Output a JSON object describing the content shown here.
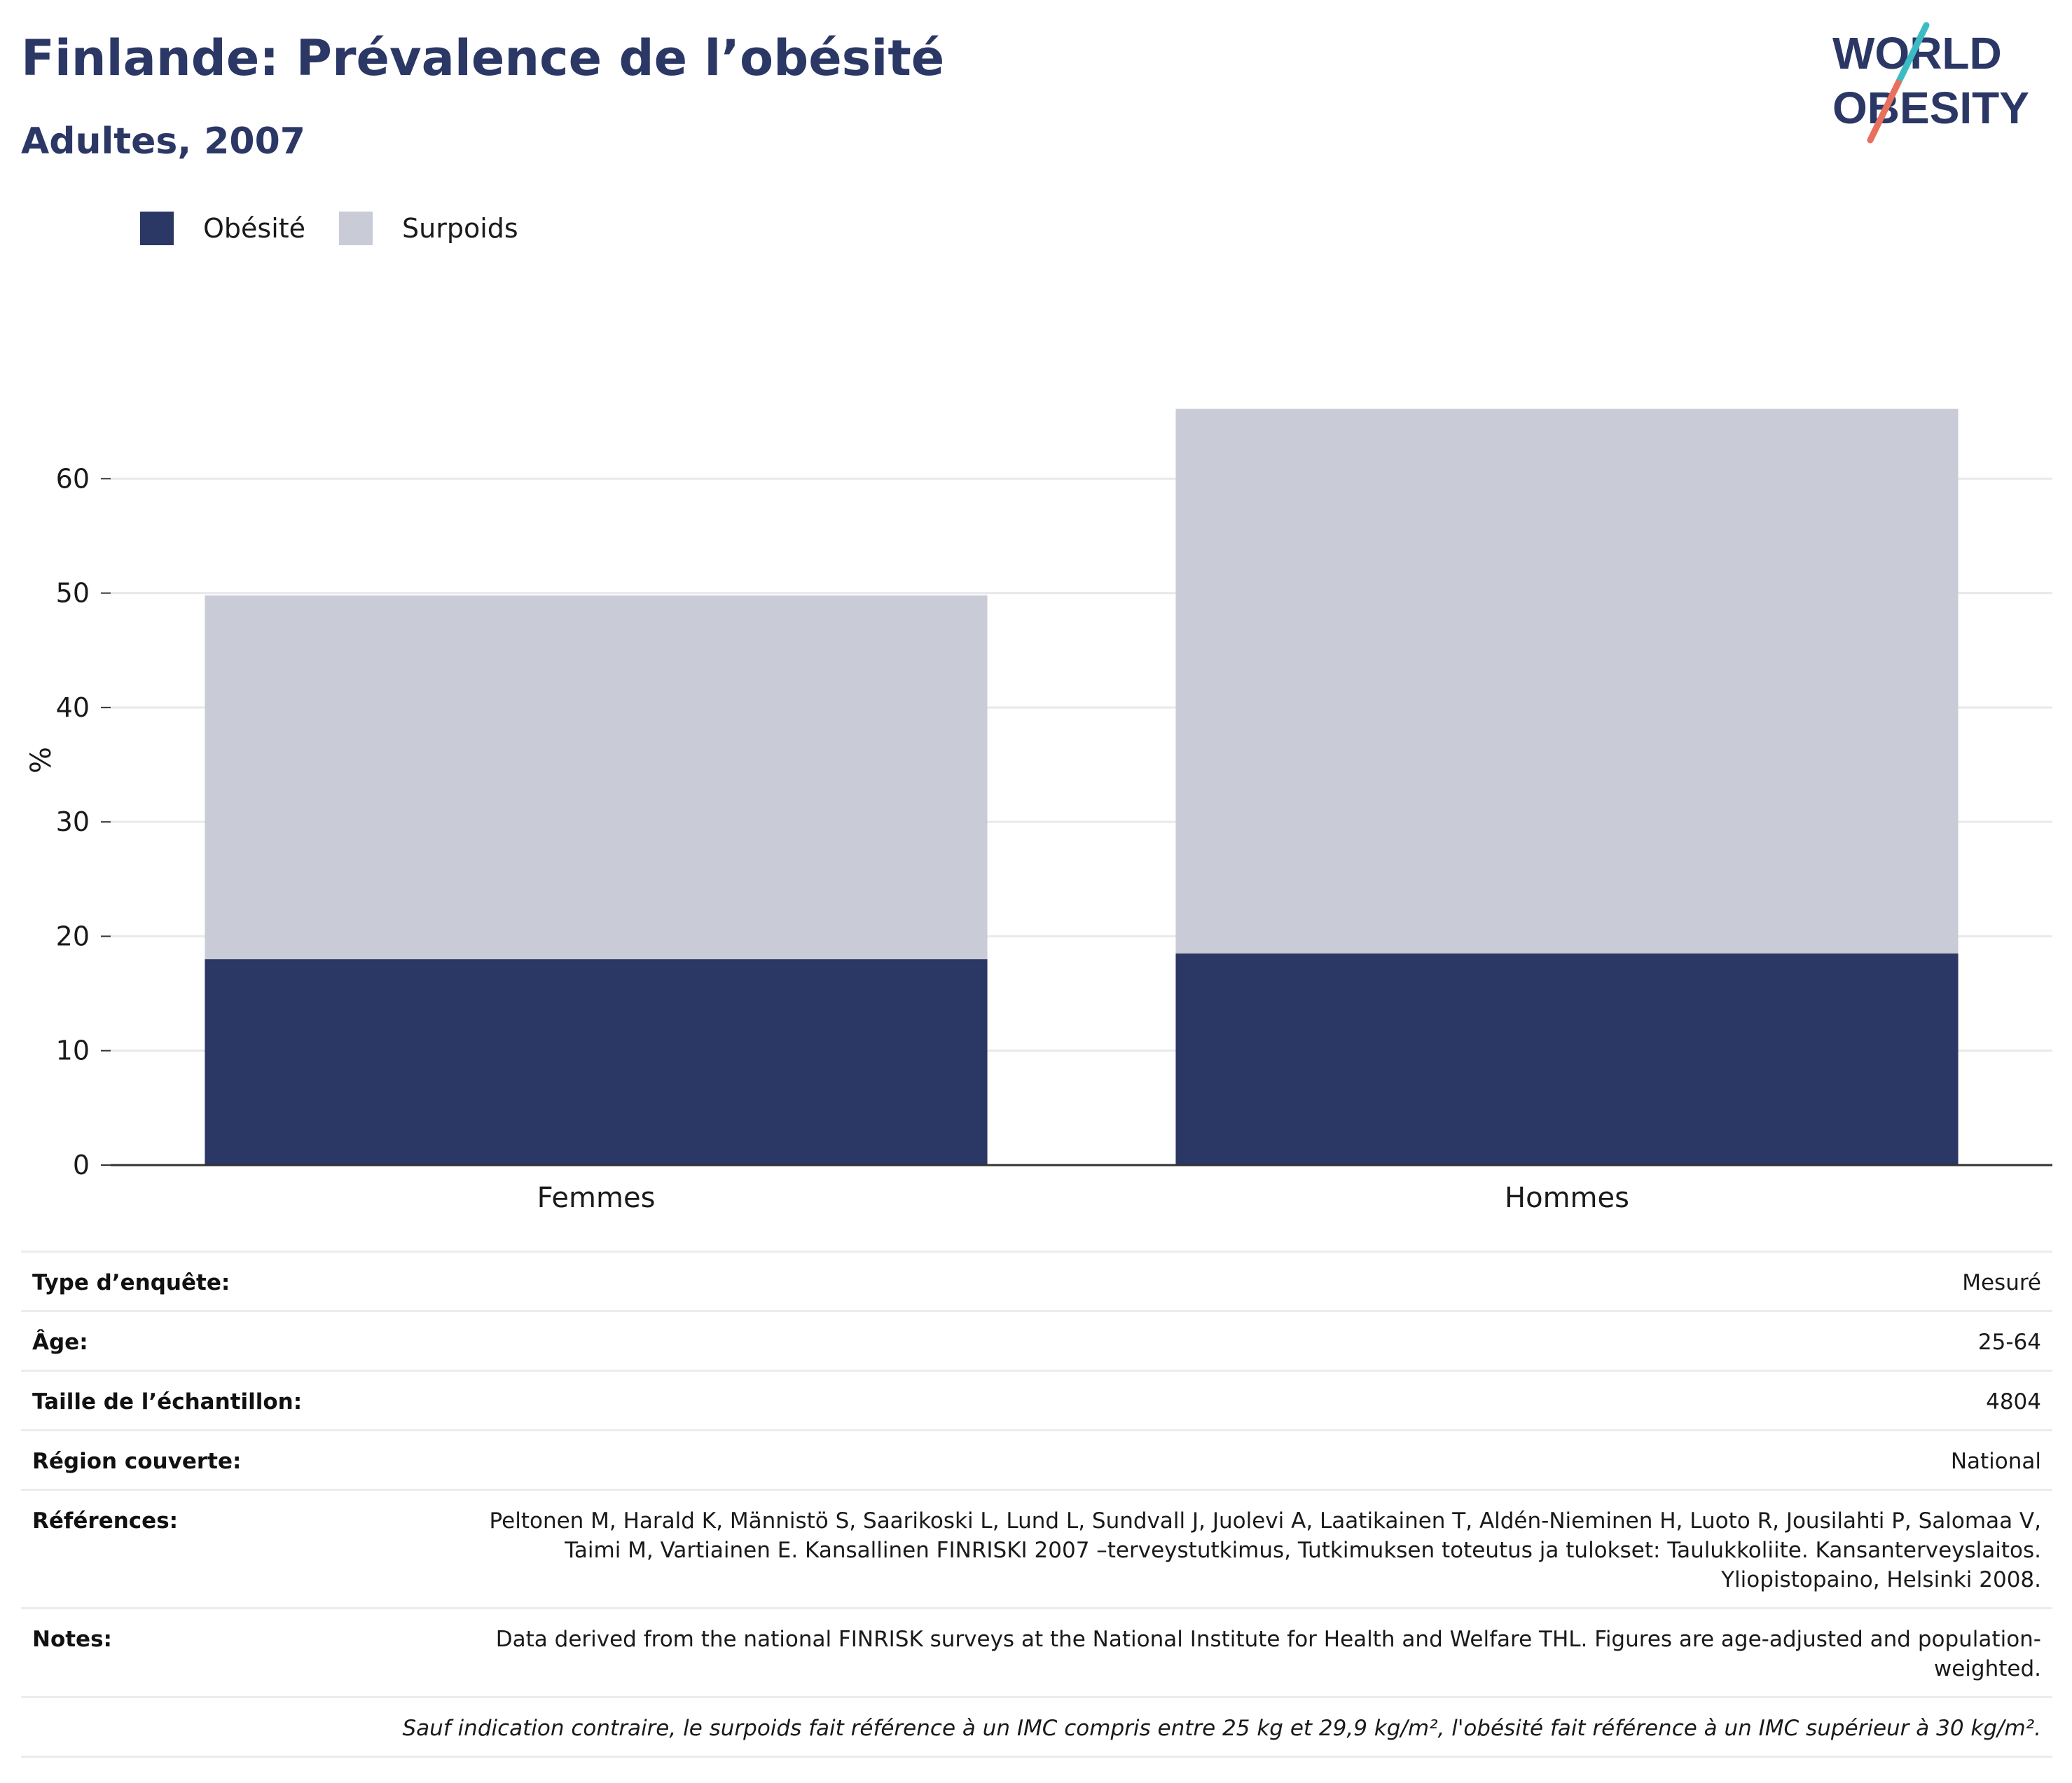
{
  "header": {
    "title": "Finlande: Prévalence de l’obésité",
    "subtitle": "Adultes, 2007"
  },
  "logo": {
    "line1": "WORLD",
    "line2": "OBESITY",
    "colors": {
      "text": "#2b3765",
      "slash_top": "#3bbcc4",
      "slash_bottom": "#e8705f"
    }
  },
  "legend": [
    {
      "label": "Obésité",
      "color": "#2b3765"
    },
    {
      "label": "Surpoids",
      "color": "#c9cbd6"
    }
  ],
  "chart_data": {
    "type": "bar",
    "stacked": true,
    "categories": [
      "Femmes",
      "Hommes"
    ],
    "series": [
      {
        "name": "Obésité",
        "values": [
          18,
          18.5
        ],
        "color": "#2b3765"
      },
      {
        "name": "Surpoids",
        "values": [
          31.8,
          47.6
        ],
        "color": "#c9cbd6"
      }
    ],
    "title": "Finlande: Prévalence de l’obésité",
    "subtitle": "Adultes, 2007",
    "xlabel": "",
    "ylabel": "%",
    "ylim": [
      0,
      70
    ],
    "yticks": [
      0,
      10,
      20,
      30,
      40,
      50,
      60
    ],
    "grid": true,
    "legend_position": "top-left"
  },
  "metadata": {
    "rows": [
      {
        "label": "Type d’enquête:",
        "value": "Mesuré"
      },
      {
        "label": "Âge:",
        "value": "25-64"
      },
      {
        "label": "Taille de l’échantillon:",
        "value": "4804"
      },
      {
        "label": "Région couverte:",
        "value": "National"
      },
      {
        "label": "Références:",
        "value": "Peltonen M, Harald K, Männistö S, Saarikoski L, Lund L, Sundvall J, Juolevi A, Laatikainen T, Aldén-Nieminen H, Luoto R, Jousilahti P, Salomaa V, Taimi M, Vartiainen E. Kansallinen FINRISKI 2007 –terveystutkimus, Tutkimuksen toteutus ja tulokset: Taulukkoliite. Kansanterveyslaitos. Yliopistopaino, Helsinki 2008."
      },
      {
        "label": "Notes:",
        "value": "Data derived from the national FINRISK surveys at the National Institute for Health and Welfare THL. Figures are age-adjusted and population-weighted."
      }
    ],
    "footnote": "Sauf indication contraire, le surpoids fait référence à un IMC compris entre 25 kg et 29,9 kg/m², l'obésité fait référence à un IMC supérieur à 30 kg/m²."
  }
}
